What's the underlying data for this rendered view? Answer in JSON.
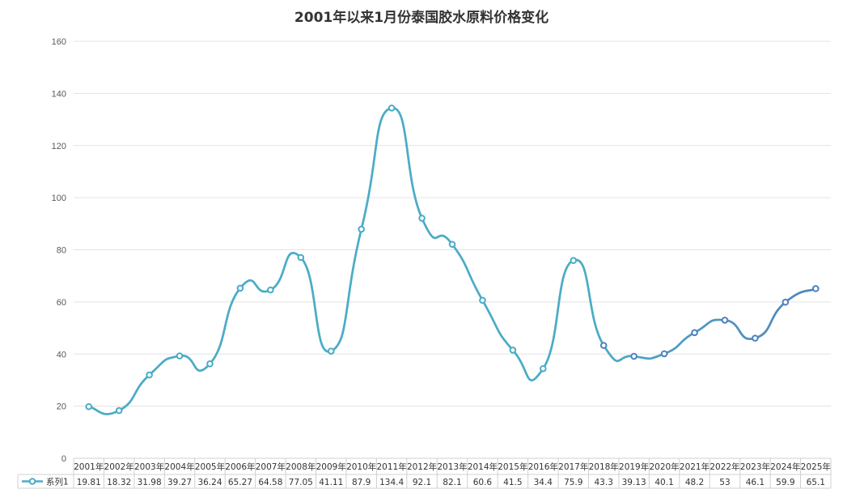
{
  "chart_data": {
    "type": "line",
    "title": "2001年以来1月份泰国胶水原料价格变化",
    "categories": [
      "2001年",
      "2002年",
      "2003年",
      "2004年",
      "2005年",
      "2006年",
      "2007年",
      "2008年",
      "2009年",
      "2010年",
      "2011年",
      "2012年",
      "2013年",
      "2014年",
      "2015年",
      "2016年",
      "2017年",
      "2018年",
      "2019年",
      "2020年",
      "2021年",
      "2022年",
      "2023年",
      "2024年",
      "2025年"
    ],
    "series": [
      {
        "name": "系列1",
        "values": [
          19.81,
          18.32,
          31.98,
          39.27,
          36.24,
          65.27,
          64.58,
          77.05,
          41.11,
          87.9,
          134.4,
          92.1,
          82.1,
          60.6,
          41.5,
          34.4,
          75.9,
          43.3,
          39.13,
          40.1,
          48.2,
          53,
          46.1,
          59.9,
          65.1
        ],
        "value_labels": [
          "19.81",
          "18.32",
          "31.98",
          "39.27",
          "36.24",
          "65.27",
          "64.58",
          "77.05",
          "41.11",
          "87.9",
          "134.4",
          "92.1",
          "82.1",
          "60.6",
          "41.5",
          "34.4",
          "75.9",
          "43.3",
          "39.13",
          "40.1",
          "48.2",
          "53",
          "46.1",
          "59.9",
          "65.1"
        ],
        "color": "#4bacc6",
        "color_end": "#4f81bd",
        "smooth": true,
        "marker": "circle"
      }
    ],
    "ylim": [
      0,
      160
    ],
    "yticks": [
      0,
      20,
      40,
      60,
      80,
      100,
      120,
      140,
      160
    ],
    "grid": true,
    "legend": "data-table",
    "data_table": true
  }
}
